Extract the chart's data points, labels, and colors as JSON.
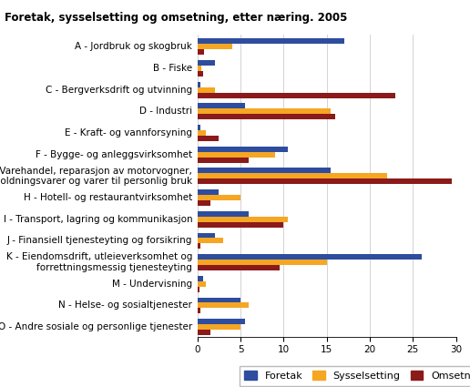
{
  "title": "Foretak, sysselsetting og omsetning, etter næring. 2005",
  "categories": [
    "A - Jordbruk og skogbruk",
    "B - Fiske",
    "C - Bergverksdrift og utvinning",
    "D - Industri",
    "E - Kraft- og vannforsyning",
    "F - Bygge- og anleggsvirksomhet",
    "G - Varehandel, reparasjon av motorvogner,\nhusholdningsvarer og varer til personlig bruk",
    "H - Hotell- og restaurantvirksomhet",
    "I - Transport, lagring og kommunikasjon",
    "J - Finansiell tjenesteyting og forsikring",
    "K - Eiendomsdrift, utleieverksomhet og\nforrettningsmessig tjenesteyting",
    "M - Undervisning",
    "N - Helse- og sosialtjenester",
    "O - Andre sosiale og personlige tjenester"
  ],
  "foretak": [
    17.0,
    2.0,
    0.3,
    5.5,
    0.3,
    10.5,
    15.5,
    2.5,
    6.0,
    2.0,
    26.0,
    0.7,
    5.0,
    5.5
  ],
  "sysselsetting": [
    4.0,
    0.5,
    2.0,
    15.5,
    1.0,
    9.0,
    22.0,
    5.0,
    10.5,
    3.0,
    15.0,
    1.0,
    6.0,
    5.0
  ],
  "omsetning": [
    0.8,
    0.7,
    23.0,
    16.0,
    2.5,
    6.0,
    29.5,
    1.5,
    10.0,
    0.3,
    9.5,
    0.2,
    0.3,
    1.5
  ],
  "color_foretak": "#2e4d9e",
  "color_sysselsetting": "#f5a623",
  "color_omsetning": "#8b1a1a",
  "xlim": [
    0,
    30
  ],
  "xticks": [
    0,
    5,
    10,
    15,
    20,
    25,
    30
  ],
  "legend_labels": [
    "Foretak",
    "Sysselsetting",
    "Omsetning"
  ],
  "bar_height": 0.25,
  "title_fontsize": 8.5,
  "tick_fontsize": 7.5,
  "label_fontsize": 7.5,
  "legend_fontsize": 8
}
